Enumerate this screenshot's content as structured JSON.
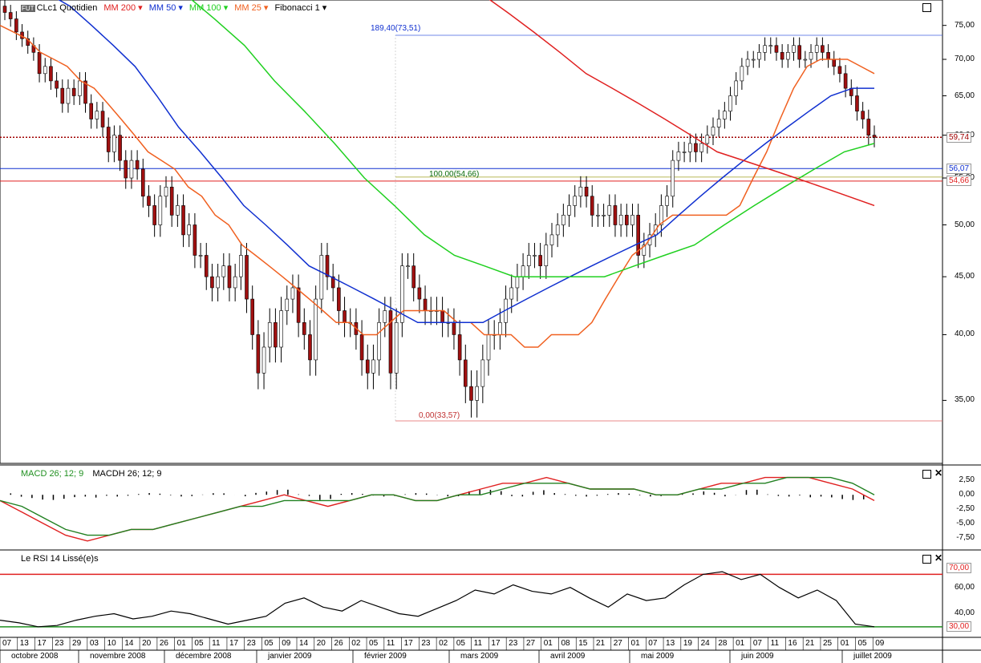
{
  "header": {
    "symbol_badge": "FUT",
    "symbol": "CLc1 Quotidien",
    "indicators": [
      {
        "label": "MM 200",
        "color": "#e02020"
      },
      {
        "label": "MM 50",
        "color": "#1030d0"
      },
      {
        "label": "MM 100",
        "color": "#20d020"
      },
      {
        "label": "MM 25",
        "color": "#f06020"
      },
      {
        "label": "Fibonacci 1",
        "color": "#000000"
      }
    ]
  },
  "price_panel": {
    "y_ticks": [
      "75,00",
      "70,00",
      "65,00",
      "60,00",
      "55,00",
      "50,00",
      "45,00",
      "40,00",
      "35,00"
    ],
    "last_price_tag": "59,74",
    "level_tags": [
      {
        "label": "56,07",
        "color": "#1030d0"
      },
      {
        "label": "54,66",
        "color": "#e02020"
      }
    ],
    "fib_annotations": [
      "189,40(73,51)",
      "100,00(54,66)",
      "0,00(33,57)"
    ]
  },
  "macd_panel": {
    "legend": [
      "MACD 26; 12; 9",
      "MACDH 26; 12; 9"
    ],
    "y_ticks": [
      "2,50",
      "0,00",
      "-2,50",
      "-5,00",
      "-7,50"
    ]
  },
  "rsi_panel": {
    "legend": "Le RSI 14 Lissé(e)s",
    "y_ticks": [
      "60,00",
      "40,00"
    ],
    "level_tags": [
      {
        "label": "70,00",
        "color": "#e02020"
      },
      {
        "label": "30,00",
        "color": "#209020"
      }
    ]
  },
  "x_axis": {
    "days": [
      "07",
      "13",
      "17",
      "23",
      "29",
      "03",
      "10",
      "14",
      "20",
      "26",
      "01",
      "05",
      "11",
      "17",
      "23",
      "05",
      "09",
      "14",
      "20",
      "26",
      "02",
      "05",
      "11",
      "17",
      "23",
      "02",
      "05",
      "11",
      "17",
      "23",
      "27",
      "01",
      "08",
      "15",
      "21",
      "27",
      "01",
      "07",
      "13",
      "19",
      "24",
      "28",
      "01",
      "07",
      "11",
      "16",
      "21",
      "25",
      "01",
      "05",
      "09"
    ],
    "months": [
      "octobre 2008",
      "novembre 2008",
      "décembre 2008",
      "janvier 2009",
      "février 2009",
      "mars 2009",
      "avril 2009",
      "mai 2009",
      "juin 2009",
      "juillet 2009"
    ]
  },
  "chart_data": {
    "type": "line",
    "title": "CLc1 Quotidien",
    "y_scale": "log",
    "ylim": [
      31,
      78
    ],
    "price_close": [
      77,
      76,
      74,
      73,
      72,
      71,
      68,
      69,
      67,
      66,
      64,
      66,
      65,
      67,
      64,
      62,
      63,
      61,
      58,
      60,
      57,
      55,
      57,
      56,
      53,
      52,
      50,
      53,
      54,
      51,
      52,
      49,
      50,
      47,
      47,
      45,
      44,
      45,
      46,
      44,
      45,
      47,
      43,
      40,
      37,
      39,
      41,
      39,
      42,
      43,
      44,
      41,
      40,
      38,
      43,
      47,
      45,
      44,
      42,
      41,
      41,
      40,
      38,
      37,
      38,
      41,
      42,
      37,
      41,
      46,
      46,
      44,
      43,
      42,
      42,
      42,
      41,
      41,
      40,
      38,
      36,
      35,
      36,
      38,
      40,
      40,
      41,
      43,
      44,
      45,
      46,
      47,
      47,
      46,
      48,
      49,
      50,
      51,
      52,
      53,
      54,
      53,
      51,
      51,
      51,
      52,
      50,
      51,
      50,
      51,
      47,
      48,
      49,
      50,
      52,
      53,
      57,
      58,
      58,
      59,
      58,
      59,
      60,
      61,
      62,
      63,
      65,
      67,
      69,
      70,
      70,
      71,
      72,
      72,
      71,
      70,
      71,
      72,
      70,
      70,
      71,
      72,
      71,
      70,
      69,
      68,
      66,
      65,
      63,
      62,
      60,
      59.74
    ],
    "mm25": [
      75,
      74,
      73,
      71,
      70,
      69,
      67,
      66,
      64,
      62,
      60,
      58,
      57,
      56,
      54,
      53,
      51,
      50,
      48,
      47,
      46,
      45,
      44,
      43,
      42,
      41,
      41,
      40,
      40,
      41,
      42,
      42,
      42,
      42,
      41,
      41,
      40,
      40,
      40,
      39,
      39,
      40,
      40,
      40,
      41,
      43,
      45,
      47,
      48,
      50,
      51,
      51,
      51,
      51,
      51,
      52,
      55,
      58,
      62,
      66,
      69,
      70,
      70,
      70,
      69,
      68
    ],
    "mm50": [
      80,
      78,
      75,
      72,
      69,
      65,
      61,
      58,
      55,
      52,
      50,
      48,
      46,
      45,
      44,
      43,
      42,
      41,
      41,
      41,
      41,
      42,
      43,
      44,
      45,
      46,
      47,
      48,
      49,
      51,
      53,
      55,
      57,
      59,
      61,
      63,
      65,
      66,
      66
    ],
    "mm100": [
      80,
      76,
      72,
      67,
      63,
      59,
      55,
      52,
      49,
      47,
      46,
      45,
      45,
      45,
      45,
      46,
      47,
      48,
      50,
      52,
      54,
      56,
      58,
      59
    ],
    "mm200": [
      80,
      77,
      74,
      71,
      68,
      66,
      64,
      62,
      60,
      58,
      57,
      56,
      55,
      54,
      53,
      52
    ],
    "fibonacci": [
      {
        "level": "189,40",
        "price": 73.51
      },
      {
        "level": "100,00",
        "price": 54.66
      },
      {
        "level": "0,00",
        "price": 33.57
      }
    ],
    "horizontal_levels": [
      {
        "price": 59.74,
        "color": "#a00000"
      },
      {
        "price": 56.07,
        "color": "#1030d0"
      },
      {
        "price": 54.66,
        "color": "#e02020"
      }
    ],
    "macd": [
      -1,
      -3,
      -5,
      -7,
      -8,
      -7,
      -6,
      -6,
      -5,
      -4,
      -3,
      -2,
      -1,
      0,
      -1,
      -2,
      -1,
      0,
      0,
      -1,
      -1,
      0,
      1,
      2,
      2,
      3,
      2,
      1,
      1,
      1,
      0,
      0,
      1,
      2,
      2,
      3,
      3,
      3,
      2,
      1,
      -1
    ],
    "macd_signal": [
      -1,
      -2,
      -4,
      -6,
      -7,
      -7,
      -6,
      -6,
      -5,
      -4,
      -3,
      -2,
      -2,
      -1,
      -1,
      -1,
      -1,
      0,
      0,
      -1,
      -1,
      0,
      0,
      1,
      2,
      2,
      2,
      1,
      1,
      1,
      0,
      0,
      1,
      1,
      2,
      2,
      3,
      3,
      3,
      2,
      0
    ],
    "rsi": [
      35,
      33,
      30,
      31,
      35,
      38,
      40,
      36,
      38,
      42,
      40,
      36,
      32,
      35,
      38,
      48,
      52,
      45,
      42,
      50,
      45,
      40,
      38,
      44,
      50,
      58,
      55,
      62,
      57,
      55,
      60,
      52,
      45,
      55,
      50,
      52,
      62,
      70,
      72,
      66,
      70,
      60,
      52,
      58,
      50,
      32,
      30
    ]
  }
}
